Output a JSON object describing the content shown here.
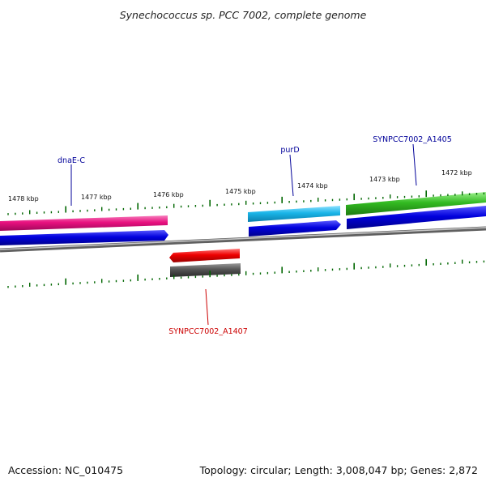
{
  "title": "Synechococcus sp. PCC 7002, complete genome",
  "footer": {
    "accession": "Accession: NC_010475",
    "summary": "Topology: circular; Length: 3,008,047 bp; Genes: 2,872"
  },
  "ticks": [
    "1478 kbp",
    "1477 kbp",
    "1476 kbp",
    "1475 kbp",
    "1474 kbp",
    "1473 kbp",
    "1472 kbp"
  ],
  "genes": [
    {
      "label": "dnaE-C",
      "color": "#000099"
    },
    {
      "label": "purD",
      "color": "#000099"
    },
    {
      "label": "SYNPCC7002_A1405",
      "color": "#000099"
    },
    {
      "label": "SYNPCC7002_A1407",
      "color": "#cc0000"
    }
  ],
  "colors": {
    "tick": "#006600",
    "backbone": "#7a7a7a",
    "cds": "#0000dd",
    "gene_pink": "#e8117f",
    "gene_cyan": "#1ab5e8",
    "gene_green": "#33bb22",
    "gene_red": "#ee0000",
    "gene_gray": "#555555"
  }
}
